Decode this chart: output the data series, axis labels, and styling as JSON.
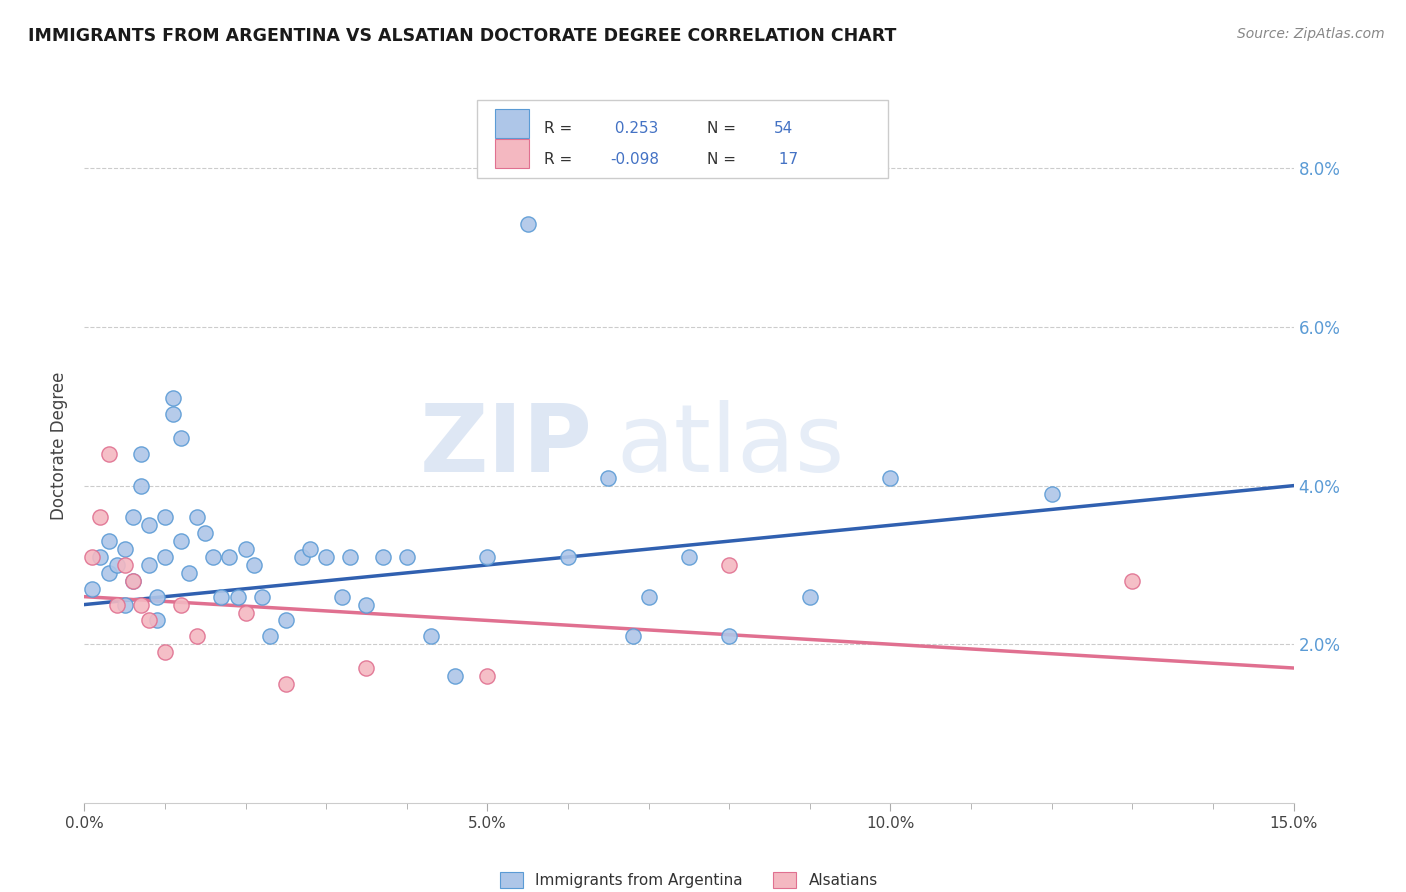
{
  "title": "IMMIGRANTS FROM ARGENTINA VS ALSATIAN DOCTORATE DEGREE CORRELATION CHART",
  "source_text": "Source: ZipAtlas.com",
  "ylabel": "Doctorate Degree",
  "xlim": [
    0.0,
    0.15
  ],
  "ylim": [
    0.0,
    0.09
  ],
  "x_ticks": [
    0.0,
    0.05,
    0.1,
    0.15
  ],
  "x_tick_labels": [
    "0.0%",
    "5.0%",
    "10.0%",
    "15.0%"
  ],
  "y_ticks": [
    0.02,
    0.04,
    0.06,
    0.08
  ],
  "y_tick_labels": [
    "2.0%",
    "4.0%",
    "6.0%",
    "8.0%"
  ],
  "argentina_color": "#aec6e8",
  "argentina_edge_color": "#5b9bd5",
  "alsatian_color": "#f4b8c1",
  "alsatian_edge_color": "#e07090",
  "trend_argentina_color": "#3060b0",
  "trend_alsatian_color": "#e07090",
  "r_argentina": 0.253,
  "n_argentina": 54,
  "r_alsatian": -0.098,
  "n_alsatian": 17,
  "watermark_zip": "ZIP",
  "watermark_atlas": "atlas",
  "legend_label_argentina": "Immigrants from Argentina",
  "legend_label_alsatian": "Alsatians",
  "argentina_x": [
    0.001,
    0.002,
    0.003,
    0.003,
    0.004,
    0.005,
    0.005,
    0.006,
    0.006,
    0.007,
    0.007,
    0.008,
    0.008,
    0.009,
    0.009,
    0.01,
    0.01,
    0.011,
    0.011,
    0.012,
    0.012,
    0.013,
    0.014,
    0.015,
    0.016,
    0.017,
    0.018,
    0.019,
    0.02,
    0.021,
    0.022,
    0.023,
    0.025,
    0.027,
    0.028,
    0.03,
    0.032,
    0.033,
    0.035,
    0.037,
    0.04,
    0.043,
    0.046,
    0.05,
    0.055,
    0.06,
    0.065,
    0.068,
    0.07,
    0.075,
    0.08,
    0.09,
    0.1,
    0.12
  ],
  "argentina_y": [
    0.027,
    0.031,
    0.029,
    0.033,
    0.03,
    0.032,
    0.025,
    0.028,
    0.036,
    0.04,
    0.044,
    0.035,
    0.03,
    0.026,
    0.023,
    0.031,
    0.036,
    0.049,
    0.051,
    0.046,
    0.033,
    0.029,
    0.036,
    0.034,
    0.031,
    0.026,
    0.031,
    0.026,
    0.032,
    0.03,
    0.026,
    0.021,
    0.023,
    0.031,
    0.032,
    0.031,
    0.026,
    0.031,
    0.025,
    0.031,
    0.031,
    0.021,
    0.016,
    0.031,
    0.073,
    0.031,
    0.041,
    0.021,
    0.026,
    0.031,
    0.021,
    0.026,
    0.041,
    0.039
  ],
  "alsatian_x": [
    0.001,
    0.002,
    0.003,
    0.004,
    0.005,
    0.006,
    0.007,
    0.008,
    0.01,
    0.012,
    0.014,
    0.02,
    0.025,
    0.035,
    0.05,
    0.08,
    0.13
  ],
  "alsatian_y": [
    0.031,
    0.036,
    0.044,
    0.025,
    0.03,
    0.028,
    0.025,
    0.023,
    0.019,
    0.025,
    0.021,
    0.024,
    0.015,
    0.017,
    0.016,
    0.03,
    0.028
  ],
  "trend_arg_x0": 0.0,
  "trend_arg_y0": 0.025,
  "trend_arg_x1": 0.15,
  "trend_arg_y1": 0.04,
  "trend_als_x0": 0.0,
  "trend_als_y0": 0.026,
  "trend_als_x1": 0.15,
  "trend_als_y1": 0.017
}
